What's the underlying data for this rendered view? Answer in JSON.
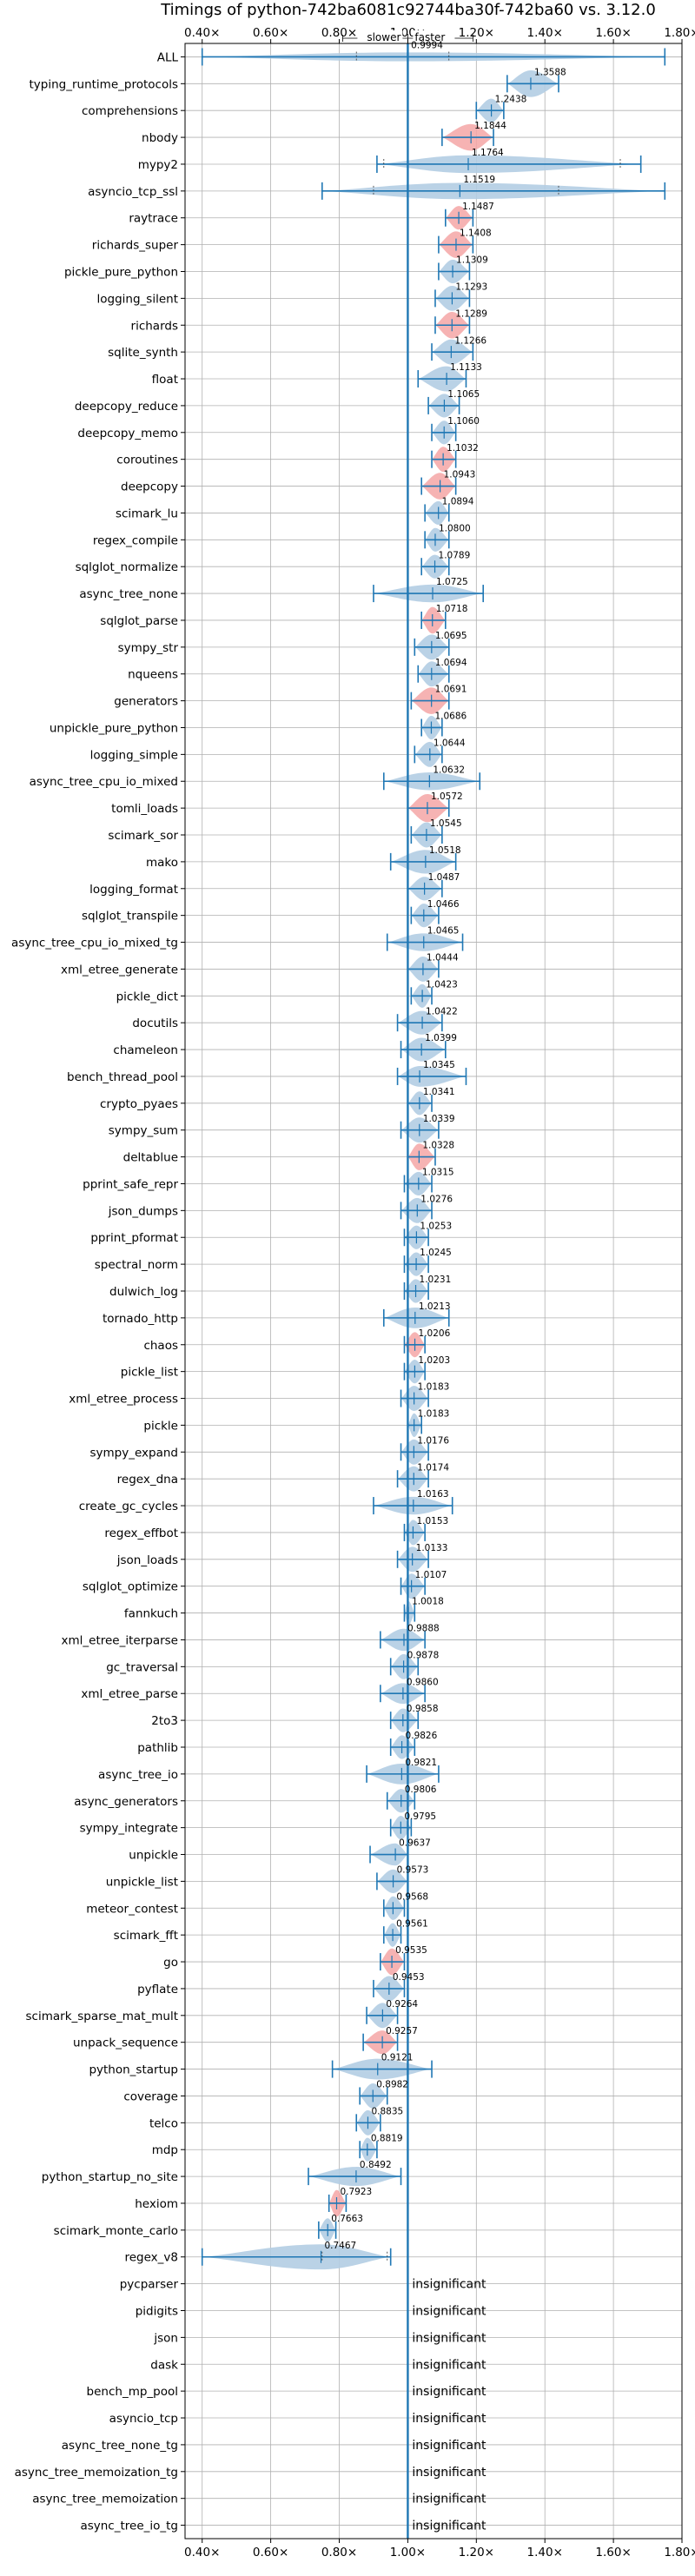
{
  "chart_data": {
    "type": "violin",
    "title": "Timings of python-742ba6081c92744ba30f-742ba60 vs. 3.12.0",
    "xlim": [
      0.35,
      1.8
    ],
    "xticks": [
      0.4,
      0.6,
      0.8,
      1.0,
      1.2,
      1.4,
      1.6,
      1.8
    ],
    "xtick_labels": [
      "0.40×",
      "0.60×",
      "0.80×",
      "1.00×",
      "1.20×",
      "1.40×",
      "1.60×",
      "1.80×"
    ],
    "reference_line": 1.0,
    "direction_labels": {
      "left": "slower",
      "right": "faster"
    },
    "grid": true,
    "colors": {
      "default": "#1f77b4",
      "fill": "#b3cde3",
      "highlight": "#f4a6a6",
      "ref": "#1f77b4"
    },
    "insignificant_label": "insignificant",
    "benchmarks": [
      {
        "name": "ALL",
        "value": 0.9994,
        "label": "0.9994",
        "low": 0.4,
        "high": 1.75,
        "q1": 0.85,
        "q3": 1.12,
        "width": 0.3,
        "highlight": false
      },
      {
        "name": "typing_runtime_protocols",
        "value": 1.3588,
        "label": "1.3588",
        "low": 1.29,
        "high": 1.44,
        "width": 0.9,
        "highlight": false
      },
      {
        "name": "comprehensions",
        "value": 1.2438,
        "label": "1.2438",
        "low": 1.2,
        "high": 1.28,
        "width": 0.8,
        "highlight": false
      },
      {
        "name": "nbody",
        "value": 1.1844,
        "label": "1.1844",
        "low": 1.1,
        "high": 1.25,
        "width": 0.9,
        "highlight": true
      },
      {
        "name": "mypy2",
        "value": 1.1764,
        "label": "1.1764",
        "low": 0.91,
        "high": 1.68,
        "q1": 0.93,
        "q3": 1.62,
        "width": 0.6,
        "highlight": false
      },
      {
        "name": "asyncio_tcp_ssl",
        "value": 1.1519,
        "label": "1.1519",
        "low": 0.75,
        "high": 1.75,
        "q1": 0.9,
        "q3": 1.44,
        "width": 0.55,
        "highlight": false
      },
      {
        "name": "raytrace",
        "value": 1.1487,
        "label": "1.1487",
        "low": 1.11,
        "high": 1.19,
        "width": 0.8,
        "highlight": true
      },
      {
        "name": "richards_super",
        "value": 1.1408,
        "label": "1.1408",
        "low": 1.09,
        "high": 1.19,
        "width": 0.9,
        "highlight": true
      },
      {
        "name": "pickle_pure_python",
        "value": 1.1309,
        "label": "1.1309",
        "low": 1.09,
        "high": 1.18,
        "width": 0.8,
        "highlight": false
      },
      {
        "name": "logging_silent",
        "value": 1.1293,
        "label": "1.1293",
        "low": 1.08,
        "high": 1.18,
        "width": 0.85,
        "highlight": false
      },
      {
        "name": "richards",
        "value": 1.1289,
        "label": "1.1289",
        "low": 1.08,
        "high": 1.18,
        "width": 0.9,
        "highlight": true
      },
      {
        "name": "sqlite_synth",
        "value": 1.1266,
        "label": "1.1266",
        "low": 1.07,
        "high": 1.19,
        "width": 0.85,
        "highlight": false
      },
      {
        "name": "float",
        "value": 1.1133,
        "label": "1.1133",
        "low": 1.03,
        "high": 1.17,
        "width": 0.85,
        "highlight": false
      },
      {
        "name": "deepcopy_reduce",
        "value": 1.1065,
        "label": "1.1065",
        "low": 1.06,
        "high": 1.15,
        "width": 0.8,
        "highlight": false
      },
      {
        "name": "deepcopy_memo",
        "value": 1.106,
        "label": "1.1060",
        "low": 1.07,
        "high": 1.14,
        "width": 0.8,
        "highlight": false
      },
      {
        "name": "coroutines",
        "value": 1.1032,
        "label": "1.1032",
        "low": 1.07,
        "high": 1.14,
        "width": 0.85,
        "highlight": true
      },
      {
        "name": "deepcopy",
        "value": 1.0943,
        "label": "1.0943",
        "low": 1.04,
        "high": 1.14,
        "width": 0.9,
        "highlight": true
      },
      {
        "name": "scimark_lu",
        "value": 1.0894,
        "label": "1.0894",
        "low": 1.05,
        "high": 1.12,
        "width": 0.8,
        "highlight": false
      },
      {
        "name": "regex_compile",
        "value": 1.08,
        "label": "1.0800",
        "low": 1.05,
        "high": 1.12,
        "width": 0.8,
        "highlight": false
      },
      {
        "name": "sqlglot_normalize",
        "value": 1.0789,
        "label": "1.0789",
        "low": 1.04,
        "high": 1.12,
        "width": 0.8,
        "highlight": false
      },
      {
        "name": "async_tree_none",
        "value": 1.0725,
        "label": "1.0725",
        "low": 0.9,
        "high": 1.22,
        "width": 0.6,
        "highlight": false
      },
      {
        "name": "sqlglot_parse",
        "value": 1.0718,
        "label": "1.0718",
        "low": 1.04,
        "high": 1.11,
        "width": 0.9,
        "highlight": true
      },
      {
        "name": "sympy_str",
        "value": 1.0695,
        "label": "1.0695",
        "low": 1.02,
        "high": 1.12,
        "width": 0.85,
        "highlight": false
      },
      {
        "name": "nqueens",
        "value": 1.0694,
        "label": "1.0694",
        "low": 1.03,
        "high": 1.12,
        "width": 0.85,
        "highlight": false
      },
      {
        "name": "generators",
        "value": 1.0691,
        "label": "1.0691",
        "low": 1.01,
        "high": 1.12,
        "width": 0.9,
        "highlight": true
      },
      {
        "name": "unpickle_pure_python",
        "value": 1.0686,
        "label": "1.0686",
        "low": 1.04,
        "high": 1.1,
        "width": 0.8,
        "highlight": false
      },
      {
        "name": "logging_simple",
        "value": 1.0644,
        "label": "1.0644",
        "low": 1.02,
        "high": 1.1,
        "width": 0.85,
        "highlight": false
      },
      {
        "name": "async_tree_cpu_io_mixed",
        "value": 1.0632,
        "label": "1.0632",
        "low": 0.93,
        "high": 1.21,
        "width": 0.6,
        "highlight": false
      },
      {
        "name": "tomli_loads",
        "value": 1.0572,
        "label": "1.0572",
        "low": 1.0,
        "high": 1.12,
        "width": 0.95,
        "highlight": true
      },
      {
        "name": "scimark_sor",
        "value": 1.0545,
        "label": "1.0545",
        "low": 1.01,
        "high": 1.1,
        "width": 0.85,
        "highlight": false
      },
      {
        "name": "mako",
        "value": 1.0518,
        "label": "1.0518",
        "low": 0.95,
        "high": 1.14,
        "width": 0.8,
        "highlight": false
      },
      {
        "name": "logging_format",
        "value": 1.0487,
        "label": "1.0487",
        "low": 1.0,
        "high": 1.1,
        "width": 0.8,
        "highlight": false
      },
      {
        "name": "sqlglot_transpile",
        "value": 1.0466,
        "label": "1.0466",
        "low": 1.01,
        "high": 1.09,
        "width": 0.8,
        "highlight": false
      },
      {
        "name": "async_tree_cpu_io_mixed_tg",
        "value": 1.0465,
        "label": "1.0465",
        "low": 0.94,
        "high": 1.16,
        "width": 0.6,
        "highlight": false
      },
      {
        "name": "xml_etree_generate",
        "value": 1.0444,
        "label": "1.0444",
        "low": 1.0,
        "high": 1.09,
        "width": 0.85,
        "highlight": false
      },
      {
        "name": "pickle_dict",
        "value": 1.0423,
        "label": "1.0423",
        "low": 1.01,
        "high": 1.07,
        "width": 0.8,
        "highlight": false
      },
      {
        "name": "docutils",
        "value": 1.0422,
        "label": "1.0422",
        "low": 0.97,
        "high": 1.1,
        "width": 0.8,
        "highlight": false
      },
      {
        "name": "chameleon",
        "value": 1.0399,
        "label": "1.0399",
        "low": 0.98,
        "high": 1.11,
        "width": 0.8,
        "highlight": false
      },
      {
        "name": "bench_thread_pool",
        "value": 1.0345,
        "label": "1.0345",
        "low": 0.97,
        "high": 1.17,
        "width": 0.7,
        "highlight": false
      },
      {
        "name": "crypto_pyaes",
        "value": 1.0341,
        "label": "1.0341",
        "low": 1.0,
        "high": 1.07,
        "width": 0.8,
        "highlight": false
      },
      {
        "name": "sympy_sum",
        "value": 1.0339,
        "label": "1.0339",
        "low": 0.98,
        "high": 1.09,
        "width": 0.85,
        "highlight": false
      },
      {
        "name": "deltablue",
        "value": 1.0328,
        "label": "1.0328",
        "low": 1.0,
        "high": 1.08,
        "width": 0.9,
        "highlight": true
      },
      {
        "name": "pprint_safe_repr",
        "value": 1.0315,
        "label": "1.0315",
        "low": 0.99,
        "high": 1.07,
        "width": 0.8,
        "highlight": false
      },
      {
        "name": "json_dumps",
        "value": 1.0276,
        "label": "1.0276",
        "low": 0.98,
        "high": 1.07,
        "width": 0.85,
        "highlight": false
      },
      {
        "name": "pprint_pformat",
        "value": 1.0253,
        "label": "1.0253",
        "low": 0.99,
        "high": 1.06,
        "width": 0.8,
        "highlight": false
      },
      {
        "name": "spectral_norm",
        "value": 1.0245,
        "label": "1.0245",
        "low": 0.99,
        "high": 1.06,
        "width": 0.8,
        "highlight": false
      },
      {
        "name": "dulwich_log",
        "value": 1.0231,
        "label": "1.0231",
        "low": 0.99,
        "high": 1.06,
        "width": 0.8,
        "highlight": false
      },
      {
        "name": "tornado_http",
        "value": 1.0213,
        "label": "1.0213",
        "low": 0.93,
        "high": 1.12,
        "width": 0.7,
        "highlight": false
      },
      {
        "name": "chaos",
        "value": 1.0206,
        "label": "1.0206",
        "low": 0.99,
        "high": 1.05,
        "width": 0.85,
        "highlight": true
      },
      {
        "name": "pickle_list",
        "value": 1.0203,
        "label": "1.0203",
        "low": 0.99,
        "high": 1.05,
        "width": 0.8,
        "highlight": false
      },
      {
        "name": "xml_etree_process",
        "value": 1.0183,
        "label": "1.0183",
        "low": 0.98,
        "high": 1.06,
        "width": 0.85,
        "highlight": false
      },
      {
        "name": "pickle",
        "value": 1.0183,
        "label": "1.0183",
        "low": 1.0,
        "high": 1.04,
        "width": 0.8,
        "highlight": false
      },
      {
        "name": "sympy_expand",
        "value": 1.0176,
        "label": "1.0176",
        "low": 0.98,
        "high": 1.06,
        "width": 0.85,
        "highlight": false
      },
      {
        "name": "regex_dna",
        "value": 1.0174,
        "label": "1.0174",
        "low": 0.97,
        "high": 1.06,
        "width": 0.85,
        "highlight": false
      },
      {
        "name": "create_gc_cycles",
        "value": 1.0163,
        "label": "1.0163",
        "low": 0.9,
        "high": 1.13,
        "width": 0.6,
        "highlight": false
      },
      {
        "name": "regex_effbot",
        "value": 1.0153,
        "label": "1.0153",
        "low": 0.99,
        "high": 1.05,
        "width": 0.85,
        "highlight": false
      },
      {
        "name": "json_loads",
        "value": 1.0133,
        "label": "1.0133",
        "low": 0.97,
        "high": 1.06,
        "width": 0.85,
        "highlight": false
      },
      {
        "name": "sqlglot_optimize",
        "value": 1.0107,
        "label": "1.0107",
        "low": 0.98,
        "high": 1.05,
        "width": 0.85,
        "highlight": false
      },
      {
        "name": "fannkuch",
        "value": 1.0018,
        "label": "1.0018",
        "low": 0.99,
        "high": 1.02,
        "width": 0.8,
        "highlight": false
      },
      {
        "name": "xml_etree_iterparse",
        "value": 0.9888,
        "label": "0.9888",
        "low": 0.92,
        "high": 1.05,
        "width": 0.75,
        "highlight": false
      },
      {
        "name": "gc_traversal",
        "value": 0.9878,
        "label": "0.9878",
        "low": 0.95,
        "high": 1.03,
        "width": 0.85,
        "highlight": false
      },
      {
        "name": "xml_etree_parse",
        "value": 0.986,
        "label": "0.9860",
        "low": 0.92,
        "high": 1.05,
        "width": 0.7,
        "highlight": false
      },
      {
        "name": "2to3",
        "value": 0.9858,
        "label": "0.9858",
        "low": 0.95,
        "high": 1.03,
        "width": 0.8,
        "highlight": false
      },
      {
        "name": "pathlib",
        "value": 0.9826,
        "label": "0.9826",
        "low": 0.95,
        "high": 1.02,
        "width": 0.8,
        "highlight": false
      },
      {
        "name": "async_tree_io",
        "value": 0.9821,
        "label": "0.9821",
        "low": 0.88,
        "high": 1.09,
        "width": 0.7,
        "highlight": false
      },
      {
        "name": "async_generators",
        "value": 0.9806,
        "label": "0.9806",
        "low": 0.94,
        "high": 1.02,
        "width": 0.8,
        "highlight": false
      },
      {
        "name": "sympy_integrate",
        "value": 0.9795,
        "label": "0.9795",
        "low": 0.95,
        "high": 1.01,
        "width": 0.8,
        "highlight": false
      },
      {
        "name": "unpickle",
        "value": 0.9637,
        "label": "0.9637",
        "low": 0.89,
        "high": 1.0,
        "width": 0.75,
        "highlight": false
      },
      {
        "name": "unpickle_list",
        "value": 0.9573,
        "label": "0.9573",
        "low": 0.91,
        "high": 1.0,
        "width": 0.8,
        "highlight": false
      },
      {
        "name": "meteor_contest",
        "value": 0.9568,
        "label": "0.9568",
        "low": 0.93,
        "high": 0.99,
        "width": 0.8,
        "highlight": false
      },
      {
        "name": "scimark_fft",
        "value": 0.9561,
        "label": "0.9561",
        "low": 0.93,
        "high": 0.98,
        "width": 0.8,
        "highlight": false
      },
      {
        "name": "go",
        "value": 0.9535,
        "label": "0.9535",
        "low": 0.92,
        "high": 0.99,
        "width": 0.9,
        "highlight": true
      },
      {
        "name": "pyflate",
        "value": 0.9453,
        "label": "0.9453",
        "low": 0.9,
        "high": 0.99,
        "width": 0.85,
        "highlight": false
      },
      {
        "name": "scimark_sparse_mat_mult",
        "value": 0.9264,
        "label": "0.9264",
        "low": 0.88,
        "high": 0.97,
        "width": 0.85,
        "highlight": false
      },
      {
        "name": "unpack_sequence",
        "value": 0.9257,
        "label": "0.9257",
        "low": 0.87,
        "high": 0.97,
        "width": 0.8,
        "highlight": true
      },
      {
        "name": "python_startup",
        "value": 0.9121,
        "label": "0.9121",
        "low": 0.78,
        "high": 1.07,
        "width": 0.7,
        "highlight": false
      },
      {
        "name": "coverage",
        "value": 0.8982,
        "label": "0.8982",
        "low": 0.86,
        "high": 0.94,
        "width": 0.85,
        "highlight": false
      },
      {
        "name": "telco",
        "value": 0.8835,
        "label": "0.8835",
        "low": 0.85,
        "high": 0.92,
        "width": 0.85,
        "highlight": false
      },
      {
        "name": "mdp",
        "value": 0.8819,
        "label": "0.8819",
        "low": 0.86,
        "high": 0.91,
        "width": 0.8,
        "highlight": false
      },
      {
        "name": "python_startup_no_site",
        "value": 0.8492,
        "label": "0.8492",
        "low": 0.71,
        "high": 0.98,
        "width": 0.65,
        "highlight": false
      },
      {
        "name": "hexiom",
        "value": 0.7923,
        "label": "0.7923",
        "low": 0.77,
        "high": 0.82,
        "width": 0.9,
        "highlight": true
      },
      {
        "name": "scimark_monte_carlo",
        "value": 0.7663,
        "label": "0.7663",
        "low": 0.74,
        "high": 0.79,
        "width": 0.8,
        "highlight": false
      },
      {
        "name": "regex_v8",
        "value": 0.7467,
        "label": "0.7467",
        "low": 0.4,
        "high": 0.95,
        "q1": 0.75,
        "q3": 0.94,
        "width": 0.85,
        "highlight": false
      },
      {
        "name": "pycparser",
        "insignificant": true
      },
      {
        "name": "pidigits",
        "insignificant": true
      },
      {
        "name": "json",
        "insignificant": true
      },
      {
        "name": "dask",
        "insignificant": true
      },
      {
        "name": "bench_mp_pool",
        "insignificant": true
      },
      {
        "name": "asyncio_tcp",
        "insignificant": true
      },
      {
        "name": "async_tree_none_tg",
        "insignificant": true
      },
      {
        "name": "async_tree_memoization_tg",
        "insignificant": true
      },
      {
        "name": "async_tree_memoization",
        "insignificant": true
      },
      {
        "name": "async_tree_io_tg",
        "insignificant": true
      }
    ]
  }
}
